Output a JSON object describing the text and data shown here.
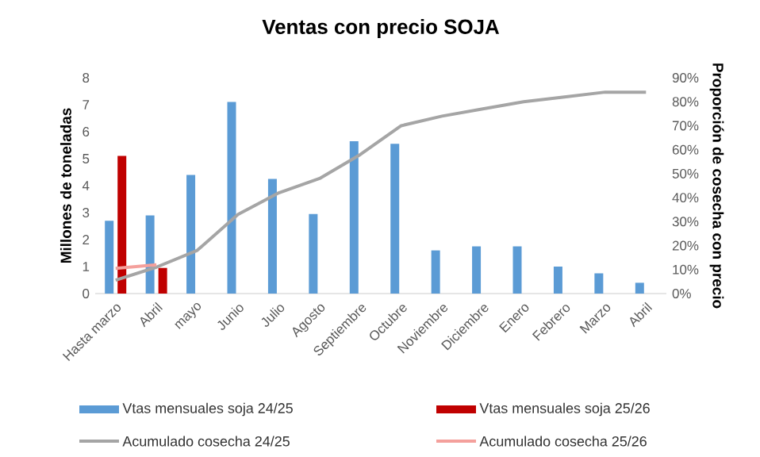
{
  "chart_data": {
    "type": "bar",
    "title": "Ventas con precio SOJA",
    "ylabel": "Millones de toneladas",
    "y2label": "Proporción de cosecha con precio",
    "categories": [
      "Hasta marzo",
      "Abril",
      "mayo",
      "Junio",
      "Julio",
      "Agosto",
      "Septiembre",
      "Octubre",
      "Noviembre",
      "Diciembre",
      "Enero",
      "Febrero",
      "Marzo",
      "Abril"
    ],
    "series": [
      {
        "name": "Vtas mensuales soja 24/25",
        "color": "#5b9bd5",
        "values": [
          2.7,
          2.9,
          4.4,
          7.1,
          4.25,
          2.95,
          5.65,
          5.55,
          1.6,
          1.75,
          1.75,
          1.0,
          0.75,
          0.4
        ]
      },
      {
        "name": "Vtas mensuales soja 25/26",
        "color": "#c00000",
        "values": [
          5.1,
          0.95,
          null,
          null,
          null,
          null,
          null,
          null,
          null,
          null,
          null,
          null,
          null,
          null
        ]
      },
      {
        "name": "Acumulado cosecha 24/25",
        "type": "line",
        "axis": "y2",
        "color": "#a5a5a5",
        "values": [
          5.6,
          11,
          18,
          33,
          42,
          48,
          58,
          70,
          74,
          77,
          80,
          82,
          84,
          84
        ]
      },
      {
        "name": "Acumulado cosecha 25/26",
        "type": "line",
        "axis": "y2",
        "color": "#f4a09c",
        "values": [
          10.5,
          12,
          null,
          null,
          null,
          null,
          null,
          null,
          null,
          null,
          null,
          null,
          null,
          null
        ]
      }
    ],
    "ylim": [
      0,
      8
    ],
    "yticks": [
      0,
      1,
      2,
      3,
      4,
      5,
      6,
      7,
      8
    ],
    "y2lim": [
      0,
      90
    ],
    "y2ticks": [
      {
        "value": 0,
        "label": "0%"
      },
      {
        "value": 10,
        "label": "10%"
      },
      {
        "value": 20,
        "label": "20%"
      },
      {
        "value": 30,
        "label": "30%"
      },
      {
        "value": 40,
        "label": "40%"
      },
      {
        "value": 50,
        "label": "50%"
      },
      {
        "value": 60,
        "label": "60%"
      },
      {
        "value": 70,
        "label": "70%"
      },
      {
        "value": 80,
        "label": "80%"
      },
      {
        "value": 90,
        "label": "90%"
      }
    ],
    "grid": false,
    "legend": "bottom",
    "marker": "none",
    "line_style": "solid"
  }
}
